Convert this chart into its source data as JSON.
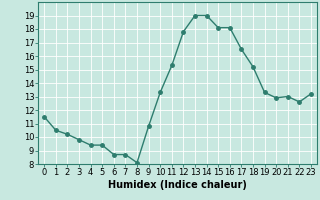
{
  "x": [
    0,
    1,
    2,
    3,
    4,
    5,
    6,
    7,
    8,
    9,
    10,
    11,
    12,
    13,
    14,
    15,
    16,
    17,
    18,
    19,
    20,
    21,
    22,
    23
  ],
  "y": [
    11.5,
    10.5,
    10.2,
    9.8,
    9.4,
    9.4,
    8.7,
    8.7,
    8.1,
    10.8,
    13.3,
    15.3,
    17.8,
    19.0,
    19.0,
    18.1,
    18.1,
    16.5,
    15.2,
    13.3,
    12.9,
    13.0,
    12.6,
    13.2
  ],
  "line_color": "#2e7d6e",
  "bg_color": "#c8e8e0",
  "grid_color": "#ffffff",
  "xlabel": "Humidex (Indice chaleur)",
  "xlabel_fontsize": 7,
  "xlim": [
    -0.5,
    23.5
  ],
  "ylim": [
    8,
    20
  ],
  "yticks": [
    8,
    9,
    10,
    11,
    12,
    13,
    14,
    15,
    16,
    17,
    18,
    19
  ],
  "xticks": [
    0,
    1,
    2,
    3,
    4,
    5,
    6,
    7,
    8,
    9,
    10,
    11,
    12,
    13,
    14,
    15,
    16,
    17,
    18,
    19,
    20,
    21,
    22,
    23
  ],
  "tick_fontsize": 6,
  "marker_size": 2.5,
  "line_width": 1.0
}
